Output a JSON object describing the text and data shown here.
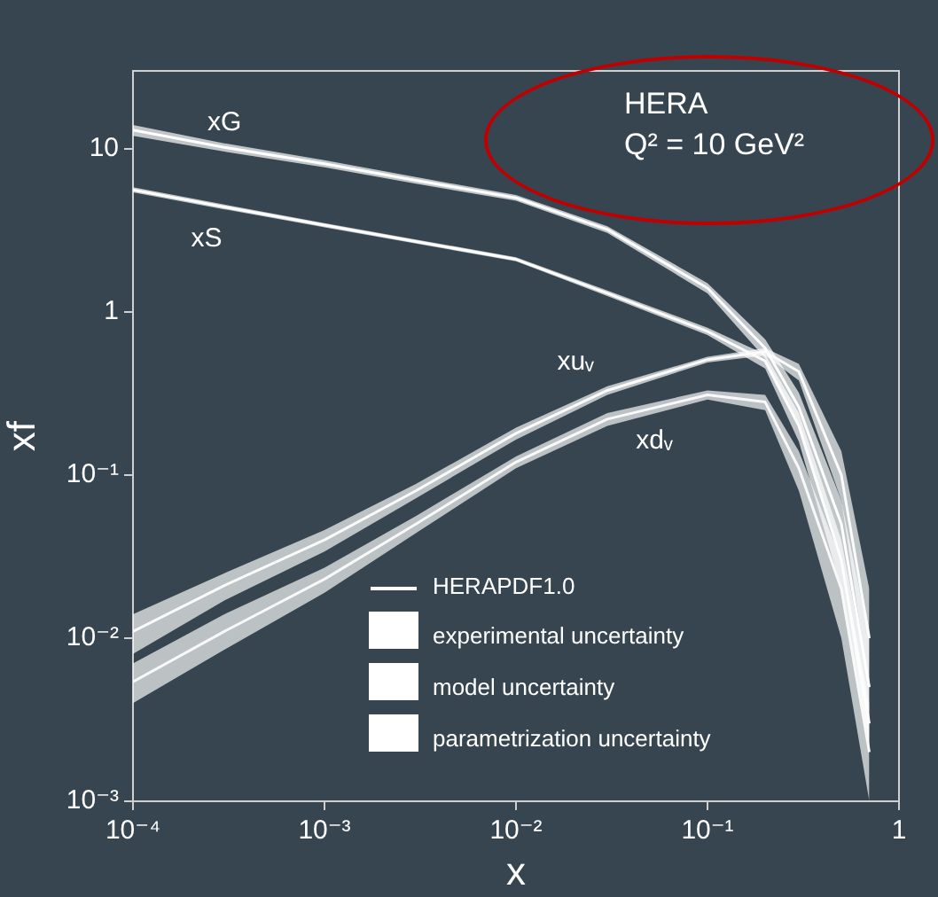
{
  "chart_data": {
    "type": "line",
    "xlabel": "x",
    "ylabel": "xf",
    "log": "xy",
    "xlim": [
      0.0001,
      1
    ],
    "ylim": [
      0.001,
      30
    ],
    "xticks": [
      {
        "value": 0.0001,
        "label": "10⁻⁴"
      },
      {
        "value": 0.001,
        "label": "10⁻³"
      },
      {
        "value": 0.01,
        "label": "10⁻²"
      },
      {
        "value": 0.1,
        "label": "10⁻¹"
      },
      1
    ],
    "yticks": [
      {
        "value": 0.001,
        "label": "10⁻³"
      },
      {
        "value": 0.01,
        "label": "10⁻²"
      },
      {
        "value": 0.1,
        "label": "10⁻¹"
      },
      1,
      10
    ],
    "x": [
      0.0001,
      0.0003,
      0.001,
      0.003,
      0.01,
      0.03,
      0.1,
      0.2,
      0.3,
      0.5,
      0.7
    ],
    "series": [
      {
        "name": "xG",
        "color": "#ffffff",
        "values": [
          13,
          10.2,
          8.1,
          6.4,
          5.0,
          3.2,
          1.4,
          0.6,
          0.26,
          0.05,
          0.005
        ],
        "lower": [
          12,
          9.6,
          7.7,
          6.1,
          4.8,
          3.05,
          1.3,
          0.52,
          0.2,
          0.03,
          0.002
        ],
        "upper": [
          14,
          10.8,
          8.5,
          6.7,
          5.2,
          3.35,
          1.5,
          0.68,
          0.32,
          0.07,
          0.01
        ]
      },
      {
        "name": "xS",
        "color": "#fdfdfd",
        "values": [
          5.6,
          4.4,
          3.4,
          2.7,
          2.1,
          1.3,
          0.76,
          0.5,
          0.2,
          0.03,
          0.003
        ],
        "lower": [
          5.4,
          4.25,
          3.3,
          2.62,
          2.04,
          1.25,
          0.72,
          0.45,
          0.16,
          0.02,
          0.002
        ],
        "upper": [
          5.8,
          4.55,
          3.5,
          2.78,
          2.16,
          1.35,
          0.8,
          0.55,
          0.24,
          0.04,
          0.005
        ]
      },
      {
        "name": "xuᵥ",
        "color": "#fbfbfb",
        "values": [
          0.011,
          0.021,
          0.04,
          0.08,
          0.18,
          0.33,
          0.51,
          0.57,
          0.43,
          0.1,
          0.01
        ],
        "lower": [
          0.008,
          0.017,
          0.034,
          0.072,
          0.165,
          0.31,
          0.49,
          0.54,
          0.38,
          0.07,
          0.005
        ],
        "upper": [
          0.014,
          0.025,
          0.046,
          0.088,
          0.195,
          0.35,
          0.53,
          0.6,
          0.48,
          0.14,
          0.02
        ]
      },
      {
        "name": "xdᵥ",
        "color": "#f9f9f9",
        "values": [
          0.0054,
          0.011,
          0.023,
          0.05,
          0.12,
          0.22,
          0.31,
          0.28,
          0.11,
          0.02,
          0.002
        ],
        "lower": [
          0.004,
          0.0085,
          0.019,
          0.044,
          0.11,
          0.2,
          0.29,
          0.25,
          0.08,
          0.01,
          0.001
        ],
        "upper": [
          0.007,
          0.014,
          0.027,
          0.056,
          0.13,
          0.24,
          0.33,
          0.31,
          0.14,
          0.03,
          0.004
        ]
      }
    ],
    "annotations": [
      "HERA",
      "Q² = 10 GeV²",
      "HERAPDF1.0",
      "experimental uncertainty",
      "model uncertainty",
      "parametrization uncertainty"
    ]
  }
}
